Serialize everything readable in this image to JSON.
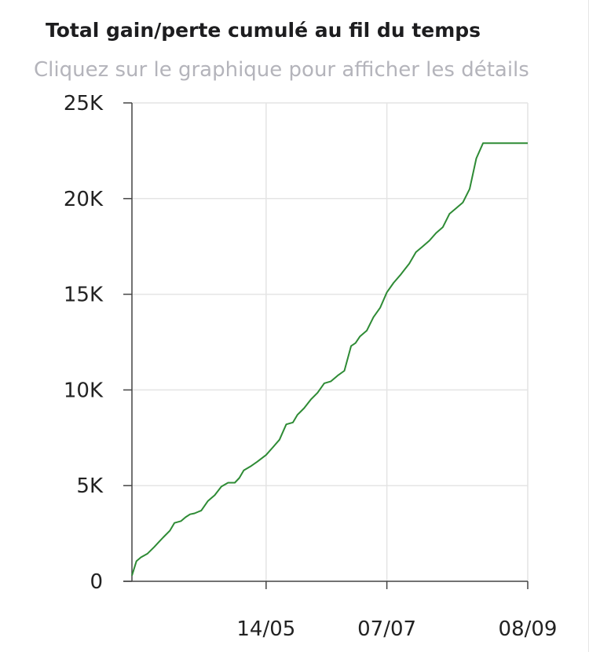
{
  "header": {
    "title": "Total gain/perte cumulé au fil du temps",
    "subtitle": "Cliquez sur le graphique pour afficher les détails"
  },
  "chart_data": {
    "type": "line",
    "title": "Total gain/perte cumulé au fil du temps",
    "subtitle": "Cliquez sur le graphique pour afficher les détails",
    "xlabel": "",
    "ylabel": "",
    "ylim": [
      0,
      25000
    ],
    "xlim": [
      "2024-03-15",
      "2024-09-08"
    ],
    "x_ticks": [
      {
        "date": "2024-05-14",
        "label": "14/05"
      },
      {
        "date": "2024-07-07",
        "label": "07/07"
      },
      {
        "date": "2024-09-08",
        "label": "08/09"
      }
    ],
    "y_ticks": [
      {
        "value": 0,
        "label": "0"
      },
      {
        "value": 5000,
        "label": "5K"
      },
      {
        "value": 10000,
        "label": "10K"
      },
      {
        "value": 15000,
        "label": "15K"
      },
      {
        "value": 20000,
        "label": "20K"
      },
      {
        "value": 25000,
        "label": "25K"
      }
    ],
    "grid": true,
    "color": "#2e8b35",
    "series": [
      {
        "x": [
          "2024-03-15",
          "2024-03-17",
          "2024-03-19",
          "2024-03-22",
          "2024-03-25",
          "2024-03-27",
          "2024-03-29",
          "2024-04-01",
          "2024-04-03",
          "2024-04-06",
          "2024-04-08",
          "2024-04-10",
          "2024-04-12",
          "2024-04-15",
          "2024-04-18",
          "2024-04-21",
          "2024-04-24",
          "2024-04-27",
          "2024-04-30",
          "2024-05-02",
          "2024-05-04",
          "2024-05-07",
          "2024-05-10",
          "2024-05-14",
          "2024-05-17",
          "2024-05-20",
          "2024-05-23",
          "2024-05-26",
          "2024-05-28",
          "2024-05-31",
          "2024-06-03",
          "2024-06-06",
          "2024-06-09",
          "2024-06-12",
          "2024-06-15",
          "2024-06-18",
          "2024-06-21",
          "2024-06-23",
          "2024-06-25",
          "2024-06-28",
          "2024-07-01",
          "2024-07-04",
          "2024-07-07",
          "2024-07-10",
          "2024-07-13",
          "2024-07-15",
          "2024-07-17",
          "2024-07-20",
          "2024-07-23",
          "2024-07-26",
          "2024-07-29",
          "2024-08-01",
          "2024-08-04",
          "2024-08-07",
          "2024-08-10",
          "2024-08-13",
          "2024-08-16",
          "2024-08-19",
          "2024-08-22",
          "2024-08-25",
          "2024-08-28",
          "2024-08-31",
          "2024-09-02",
          "2024-09-04",
          "2024-09-06",
          "2024-09-08"
        ],
        "y": [
          300,
          1050,
          1250,
          1450,
          1800,
          2050,
          2300,
          2650,
          3050,
          3150,
          3350,
          3500,
          3550,
          3700,
          4200,
          4500,
          4950,
          5150,
          5150,
          5400,
          5800,
          6000,
          6250,
          6600,
          7000,
          7400,
          8200,
          8300,
          8700,
          9050,
          9500,
          9850,
          10350,
          10450,
          10750,
          11000,
          12300,
          12450,
          12800,
          13100,
          13800,
          14300,
          15100,
          15600,
          16000,
          16300,
          16600,
          17200,
          17500,
          17800,
          18200,
          18500,
          19200,
          19500,
          19800,
          20500,
          22100,
          22900,
          22900,
          22900,
          22900,
          22900,
          22900,
          22900,
          22900,
          22900
        ]
      }
    ]
  }
}
